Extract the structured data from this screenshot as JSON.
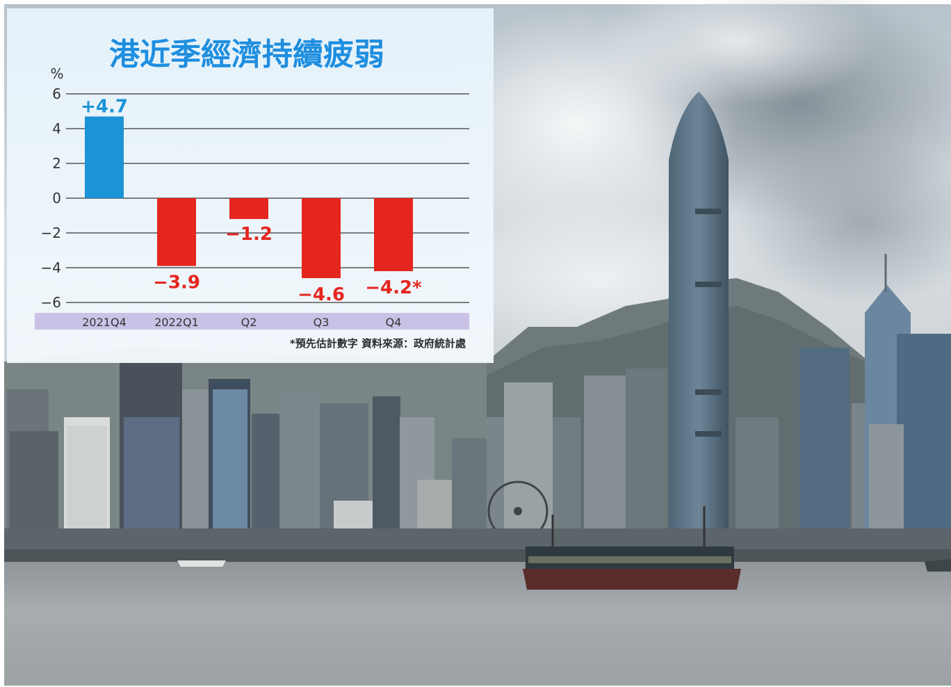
{
  "chart_data": {
    "type": "bar",
    "title": "港近季經濟持續疲弱",
    "ylabel": "%",
    "ylim": [
      -6,
      6
    ],
    "yticks": [
      6,
      4,
      2,
      0,
      -2,
      -4,
      -6
    ],
    "ytick_labels": [
      "6",
      "4",
      "2",
      "0",
      "−2",
      "−4",
      "−6"
    ],
    "categories": [
      "2021Q4",
      "2022Q1",
      "Q2",
      "Q3",
      "Q4"
    ],
    "values": [
      4.7,
      -3.9,
      -1.2,
      -4.6,
      -4.2
    ],
    "value_labels": [
      "+4.7",
      "−3.9",
      "−1.2",
      "−4.6",
      "−4.2*"
    ],
    "grid": true,
    "footnote": "*預先估計數字  資料來源：政府統計處",
    "colors": {
      "positive": "#1b93d6",
      "negative": "#e5261f",
      "label_positive": "#1b93d6",
      "label_negative": "#e5261f",
      "title": "#1e8ee0",
      "axis_band": "#c9c2e6"
    }
  },
  "photo": {
    "description_icon": "hong-kong-harbour-skyline-photo"
  }
}
